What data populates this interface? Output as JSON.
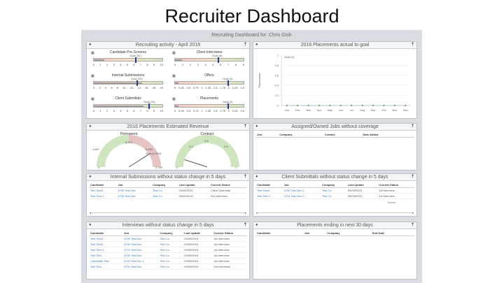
{
  "slide_title": "Recruiter Dashboard",
  "dashboard_title": "Recruiting Dashboard for: Chris Gish",
  "icons": {
    "pin": "pin-icon",
    "expand": "arrow-up-icon",
    "gauge": "gauge-icon"
  },
  "colors": {
    "link": "#3a78b5",
    "target_marker": "#233f8c",
    "header_bg": "#f4f5f6"
  },
  "recruiting_activity": {
    "title": "Recruiting activity - April 2016",
    "gauges": [
      {
        "title": "Candidate Pre-Screens",
        "value_label": "Goal (20)",
        "scale": [
          "0",
          "1",
          "2",
          "3",
          "4",
          "5",
          "6",
          "7",
          "8",
          "9",
          "10"
        ],
        "progress": 0.15,
        "goal": 0.6
      },
      {
        "title": "Client Interviews",
        "value_label": "Goal (8)",
        "scale": [
          "0",
          "1",
          "2",
          "3",
          "4",
          "5",
          "6",
          "7",
          "8",
          "9"
        ],
        "progress": 0.1,
        "goal": 0.62
      },
      {
        "title": "Internal Submissions",
        "value_label": "Goal (20)",
        "scale": [
          "0",
          "2",
          "4",
          "6",
          "8",
          "10",
          "12",
          "14",
          "16",
          "18",
          "20"
        ],
        "progress": 0.7,
        "goal": 0.62
      },
      {
        "title": "Offers",
        "value_label": "Goal (2)",
        "scale": [
          "0",
          "0.25",
          "0.5",
          "0.75",
          "1",
          "1.25",
          "1.5",
          "1.75",
          "2",
          "2.25",
          "2.5"
        ],
        "progress": 0.05,
        "goal": 0.77
      },
      {
        "title": "Client Submittals",
        "value_label": "Goal (10)",
        "scale": [
          "0",
          "1",
          "2",
          "3",
          "4",
          "5",
          "6",
          "7",
          "8",
          "9",
          "10"
        ],
        "progress": 0.72,
        "goal": 0.8
      },
      {
        "title": "Placements",
        "value_label": "Goal (2)",
        "scale": [
          "0",
          "0.25",
          "0.5",
          "0.75",
          "1",
          "1.25",
          "1.5",
          "1.75",
          "2",
          "2.25",
          "2.5"
        ],
        "progress": 0.05,
        "goal": 0.77
      }
    ]
  },
  "placements_goal": {
    "title": "2016 Placements actual to goal",
    "ylabel": "Placements"
  },
  "chart_data": {
    "type": "line",
    "title": "2016 Placements actual to goal",
    "ylabel": "Placements",
    "categories": [
      "Jan",
      "Feb",
      "Mar",
      "Apr",
      "May",
      "Jun",
      "Jul",
      "Aug",
      "Sep",
      "Oct",
      "Nov",
      "Dec"
    ],
    "yticks": [
      "1",
      "0.8",
      "0.6",
      "0.4",
      "0.2",
      "0"
    ],
    "ylim": [
      0,
      1
    ],
    "series": [
      {
        "name": "Goal (1)",
        "values": [
          0,
          0,
          0,
          0,
          0,
          0,
          0,
          0,
          0,
          0,
          0,
          0
        ]
      }
    ],
    "grid": true
  },
  "revenue": {
    "title": "2016 Placements Estimated Revenue",
    "permanent": {
      "label": "Permanent",
      "values": [
        "8,371",
        "9,463",
        "Goal (1,500)",
        "1,667",
        "0",
        "2,160"
      ],
      "level": 0.82
    },
    "contract": {
      "label": "Contract",
      "values": [
        "0.6",
        "0.4",
        "0.8",
        "0",
        "1"
      ],
      "level": 0.1
    }
  },
  "assigned_jobs": {
    "title": "Assigned/Owned Jobs without coverage",
    "columns": [
      "Job",
      "Company",
      "Contact",
      "Date Added"
    ]
  },
  "internal_submissions": {
    "title": "Internal Submissions without status change in 5 days",
    "columns": [
      "Candidate",
      "Job",
      "Company",
      "Last Update",
      "Current Status"
    ],
    "rows": [
      [
        "Test Test3",
        "4739 Test Dev",
        "Test Co",
        "03/05/2015",
        "Client Submittal"
      ],
      [
        "Test Test 1",
        "4739 Test Dev",
        "Test Co",
        "03/05/2015",
        "2nd Interview"
      ]
    ]
  },
  "client_submittals": {
    "title": "Client Submittals without status change in 5 days",
    "columns": [
      "Candidate",
      "Job",
      "Company",
      "Last Update",
      "Current Status"
    ],
    "rows": [
      [
        "Test Test3",
        "4730 Test Dev 2",
        "Test Co",
        "03/05/2015",
        "1st Interview"
      ],
      [
        "Test Test 1",
        "4731 Test Dev 3",
        "Test Co",
        "03/05/2015",
        "1st Interview"
      ]
    ],
    "note": "Seeee"
  },
  "interviews": {
    "title": "Interviews without status change in 5 days",
    "columns": [
      "Candidate",
      "Job",
      "Company",
      "Last Update",
      "Current Status"
    ],
    "rows": [
      [
        "Test Test3",
        "4739 Test Dev",
        "Test Co",
        "03/05/2015",
        "1st Interview"
      ],
      [
        "Test Test3",
        "4739 Test Dev",
        "Test Co",
        "03/05/2015",
        "1st Interview"
      ],
      [
        "Test Test 4",
        "4729 Test Dev",
        "Test Co",
        "03/05/2015",
        "1st Interview"
      ],
      [
        "Test Test",
        "4739 Test Dev",
        "Test Co",
        "03/05/2015",
        "1st Interview"
      ],
      [
        "Candidate Test",
        "4730 Test Dev 2",
        "Test Co",
        "03/05/2015",
        "1st Interview"
      ],
      [
        "Test Test",
        "4731 Test Dev",
        "Test Co",
        "03/05/2015",
        "2nd Interview"
      ]
    ]
  },
  "placements_ending": {
    "title": "Placements ending in next 30 days",
    "columns": [
      "Candidate",
      "Job",
      "Company",
      "End Date"
    ]
  }
}
